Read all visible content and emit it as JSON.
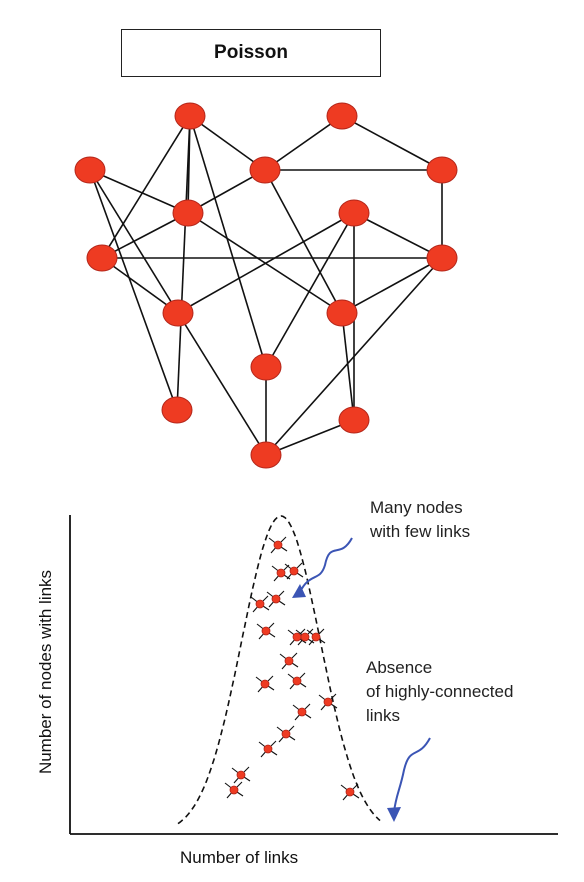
{
  "title": "Poisson",
  "annotations": {
    "many_nodes": "Many nodes\nwith few links",
    "absence": "Absence\nof highly-connected\nlinks"
  },
  "axes": {
    "xlabel": "Number of links",
    "ylabel": "Number of nodes with links"
  },
  "colors": {
    "node_fill": "#ee3b22",
    "node_stroke": "#b3261a",
    "edge": "#111111",
    "arrow": "#3b55b5"
  },
  "graph": {
    "nodes": [
      "n1",
      "n2",
      "n3",
      "n4",
      "n5",
      "n6",
      "n7",
      "n8",
      "n9",
      "n10",
      "n11",
      "n12",
      "n13",
      "n14",
      "n15",
      "n16"
    ],
    "edges": [
      [
        "n1",
        "n4"
      ],
      [
        "n1",
        "n5"
      ],
      [
        "n1",
        "n6"
      ],
      [
        "n1",
        "n13"
      ],
      [
        "n2",
        "n4"
      ],
      [
        "n2",
        "n6"
      ],
      [
        "n2",
        "n14"
      ],
      [
        "n2",
        "n10"
      ],
      [
        "n3",
        "n4"
      ],
      [
        "n3",
        "n5"
      ],
      [
        "n3",
        "n8"
      ],
      [
        "n4",
        "n5"
      ],
      [
        "n4",
        "n11"
      ],
      [
        "n4",
        "n7"
      ],
      [
        "n5",
        "n9"
      ],
      [
        "n5",
        "n8"
      ],
      [
        "n6",
        "n9"
      ],
      [
        "n6",
        "n15"
      ],
      [
        "n6",
        "n10"
      ],
      [
        "n7",
        "n8"
      ],
      [
        "n7",
        "n9"
      ],
      [
        "n8",
        "n13"
      ],
      [
        "n8",
        "n16"
      ],
      [
        "n9",
        "n10"
      ],
      [
        "n9",
        "n12"
      ],
      [
        "n10",
        "n11"
      ],
      [
        "n10",
        "n12"
      ],
      [
        "n11",
        "n13"
      ],
      [
        "n11",
        "n12"
      ],
      [
        "n12",
        "n15"
      ],
      [
        "n12",
        "n16"
      ],
      [
        "n13",
        "n14"
      ],
      [
        "n14",
        "n15"
      ],
      [
        "n15",
        "n16"
      ]
    ]
  }
}
